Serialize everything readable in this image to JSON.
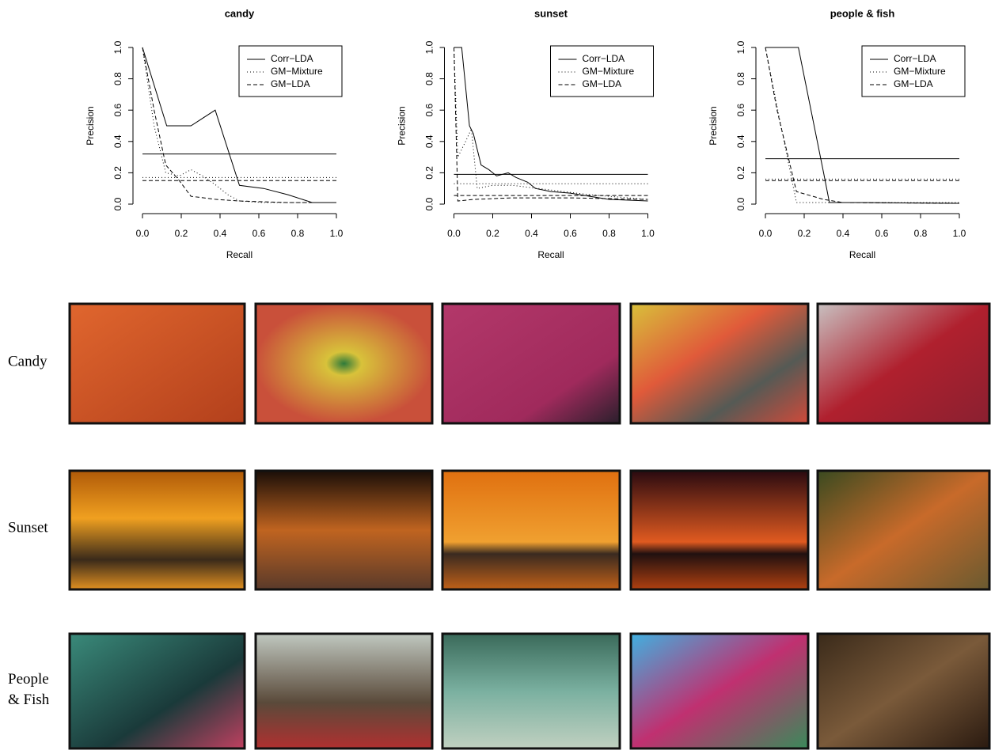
{
  "chart_data": [
    {
      "type": "line",
      "title": "candy",
      "x_label": "Recall",
      "y_label": "Precision",
      "legend": "topright",
      "xlim": [
        0,
        1
      ],
      "ylim": [
        0,
        1
      ],
      "xticks": [
        {
          "value": 0,
          "label": "0.0"
        },
        0.2,
        0.4,
        0.6,
        0.8,
        {
          "value": 1,
          "label": "1.0"
        }
      ],
      "yticks": [
        {
          "value": 0,
          "label": "0.0"
        },
        0.2,
        0.4,
        0.6,
        0.8,
        {
          "value": 1,
          "label": "1.0"
        }
      ],
      "series": [
        {
          "name": "Corr−LDA",
          "color": "#000",
          "linestyle": "solid",
          "baseline": 0.32,
          "x": [
            0,
            0.125,
            0.25,
            0.375,
            0.5,
            0.625,
            0.75,
            0.875,
            1
          ],
          "values": [
            1.0,
            0.5,
            0.5,
            0.6,
            0.12,
            0.1,
            0.06,
            0.01,
            0.01
          ]
        },
        {
          "name": "GM−Mixture",
          "color": "#000",
          "linestyle": "dotted",
          "baseline": 0.17,
          "x": [
            0,
            0.06,
            0.12,
            0.19,
            0.25,
            0.31,
            0.38,
            0.44,
            0.5,
            0.62,
            0.75,
            0.88,
            1
          ],
          "values": [
            1.0,
            0.5,
            0.2,
            0.18,
            0.22,
            0.18,
            0.12,
            0.06,
            0.02,
            0.01,
            0.01,
            0.01,
            0.01
          ]
        },
        {
          "name": "GM−LDA",
          "color": "#000",
          "linestyle": "dashed",
          "baseline": 0.15,
          "x": [
            0,
            0.06,
            0.12,
            0.19,
            0.25,
            0.38,
            0.5,
            0.75,
            1
          ],
          "values": [
            1.0,
            0.6,
            0.25,
            0.15,
            0.05,
            0.03,
            0.02,
            0.01,
            0.01
          ]
        }
      ]
    },
    {
      "type": "line",
      "title": "sunset",
      "x_label": "Recall",
      "y_label": "Precision",
      "legend": "topright",
      "xlim": [
        0,
        1
      ],
      "ylim": [
        0,
        1
      ],
      "xticks": [
        {
          "value": 0,
          "label": "0.0"
        },
        0.2,
        0.4,
        0.6,
        0.8,
        {
          "value": 1,
          "label": "1.0"
        }
      ],
      "yticks": [
        {
          "value": 0,
          "label": "0.0"
        },
        0.2,
        0.4,
        0.6,
        0.8,
        {
          "value": 1,
          "label": "1.0"
        }
      ],
      "series": [
        {
          "name": "Corr−LDA",
          "color": "#000",
          "linestyle": "solid",
          "baseline": 0.19,
          "x": [
            0,
            0.04,
            0.08,
            0.1,
            0.14,
            0.18,
            0.22,
            0.28,
            0.32,
            0.38,
            0.42,
            0.5,
            0.6,
            0.7,
            0.8,
            0.9,
            1
          ],
          "values": [
            1.0,
            1.0,
            0.5,
            0.45,
            0.25,
            0.22,
            0.18,
            0.2,
            0.17,
            0.14,
            0.1,
            0.08,
            0.07,
            0.05,
            0.03,
            0.025,
            0.02
          ]
        },
        {
          "name": "GM−Mixture",
          "color": "#000",
          "linestyle": "dotted",
          "baseline": 0.13,
          "x": [
            0,
            0.02,
            0.06,
            0.09,
            0.12,
            0.2,
            0.3,
            0.5,
            0.7,
            1
          ],
          "values": [
            1.0,
            0.3,
            0.4,
            0.48,
            0.1,
            0.12,
            0.12,
            0.09,
            0.06,
            0.03
          ]
        },
        {
          "name": "GM−LDA",
          "color": "#000",
          "linestyle": "dashed",
          "baseline": 0.055,
          "x": [
            0,
            0.02,
            0.1,
            0.3,
            0.6,
            1
          ],
          "values": [
            1.0,
            0.02,
            0.03,
            0.04,
            0.04,
            0.03
          ]
        }
      ]
    },
    {
      "type": "line",
      "title": "people & fish",
      "x_label": "Recall",
      "y_label": "Precision",
      "legend": "topright",
      "xlim": [
        0,
        1
      ],
      "ylim": [
        0,
        1
      ],
      "xticks": [
        {
          "value": 0,
          "label": "0.0"
        },
        0.2,
        0.4,
        0.6,
        0.8,
        {
          "value": 1,
          "label": "1.0"
        }
      ],
      "yticks": [
        {
          "value": 0,
          "label": "0.0"
        },
        0.2,
        0.4,
        0.6,
        0.8,
        {
          "value": 1,
          "label": "1.0"
        }
      ],
      "series": [
        {
          "name": "Corr−LDA",
          "color": "#000",
          "linestyle": "solid",
          "baseline": 0.29,
          "x": [
            0,
            0.17,
            0.3,
            0.33,
            0.5,
            1
          ],
          "values": [
            1.0,
            1.0,
            0.2,
            0.01,
            0.01,
            0.005
          ]
        },
        {
          "name": "GM−Mixture",
          "color": "#000",
          "linestyle": "dotted",
          "baseline": 0.16,
          "x": [
            0,
            0.08,
            0.16,
            1
          ],
          "values": [
            1.0,
            0.5,
            0.01,
            0.01
          ]
        },
        {
          "name": "GM−LDA",
          "color": "#000",
          "linestyle": "dashed",
          "baseline": 0.15,
          "x": [
            0,
            0.06,
            0.16,
            0.3,
            0.4,
            1
          ],
          "values": [
            1.0,
            0.6,
            0.08,
            0.03,
            0.01,
            0.005
          ]
        }
      ]
    }
  ],
  "image_grid": {
    "rows": [
      {
        "label": "Candy"
      },
      {
        "label": "Sunset"
      },
      {
        "label": "People\n& Fish"
      }
    ]
  }
}
